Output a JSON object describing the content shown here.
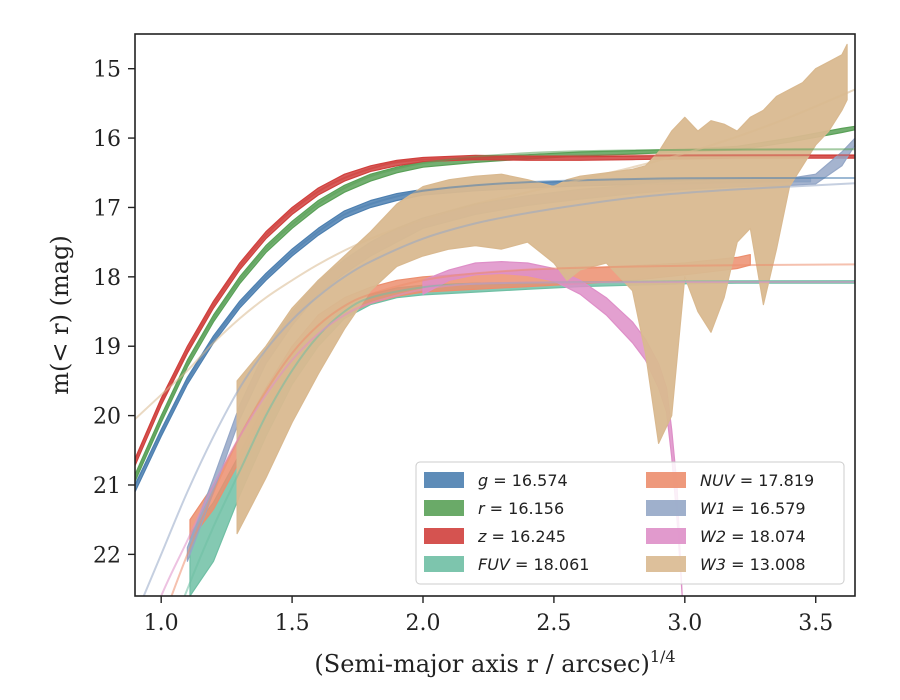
{
  "chart_data": {
    "type": "line",
    "xlabel": "(Semi-major axis r / arcsec)",
    "xlabel_exponent": "1/4",
    "ylabel": "m(< r) (mag)",
    "xlim": [
      0.9,
      3.65
    ],
    "ylim": [
      22.6,
      14.5
    ],
    "y_inverted": true,
    "x_ticks": [
      1.0,
      1.5,
      2.0,
      2.5,
      3.0,
      3.5
    ],
    "x_tick_labels": [
      "1.0",
      "1.5",
      "2.0",
      "2.5",
      "3.0",
      "3.5"
    ],
    "y_ticks": [
      15,
      16,
      17,
      18,
      19,
      20,
      21,
      22
    ],
    "y_tick_labels": [
      "15",
      "16",
      "17",
      "18",
      "19",
      "20",
      "21",
      "22"
    ],
    "grid": false,
    "legend_position": "lower-right",
    "legend_columns": 2,
    "series": [
      {
        "name": "g",
        "value": "16.574",
        "color": "#4c7fb0",
        "band_x": [
          0.9,
          1.0,
          1.1,
          1.2,
          1.3,
          1.4,
          1.5,
          1.6,
          1.7,
          1.8,
          1.9,
          2.0,
          2.2,
          2.4,
          2.6,
          2.8,
          3.0,
          3.2,
          3.4,
          3.48
        ],
        "band_upper": [
          21.0,
          20.2,
          19.45,
          18.85,
          18.35,
          17.95,
          17.6,
          17.3,
          17.05,
          16.9,
          16.8,
          16.74,
          16.68,
          16.64,
          16.62,
          16.6,
          16.6,
          16.59,
          16.58,
          16.58
        ],
        "band_lower": [
          21.1,
          20.3,
          19.55,
          18.95,
          18.45,
          18.05,
          17.7,
          17.4,
          17.15,
          17.0,
          16.9,
          16.82,
          16.76,
          16.72,
          16.69,
          16.67,
          16.66,
          16.64,
          16.63,
          16.63
        ],
        "model_x": [
          0.9,
          1.0,
          1.1,
          1.2,
          1.3,
          1.4,
          1.5,
          1.6,
          1.7,
          1.8,
          1.9,
          2.0,
          2.2,
          2.5,
          3.0,
          3.65
        ],
        "model_y": [
          21.0,
          20.25,
          19.5,
          18.9,
          18.4,
          18.0,
          17.65,
          17.35,
          17.1,
          16.95,
          16.84,
          16.76,
          16.68,
          16.62,
          16.58,
          16.575
        ]
      },
      {
        "name": "r",
        "value": "16.156",
        "color": "#5aa158",
        "band_x": [
          0.9,
          1.0,
          1.1,
          1.2,
          1.3,
          1.4,
          1.5,
          1.6,
          1.7,
          1.8,
          1.9,
          2.0,
          2.2,
          2.4,
          2.6,
          2.8,
          3.0,
          3.2,
          3.4,
          3.6,
          3.65
        ],
        "band_upper": [
          20.85,
          20.0,
          19.2,
          18.55,
          18.0,
          17.55,
          17.2,
          16.9,
          16.68,
          16.52,
          16.42,
          16.34,
          16.28,
          16.24,
          16.2,
          16.18,
          16.16,
          16.12,
          16.0,
          15.86,
          15.83
        ],
        "band_lower": [
          20.95,
          20.1,
          19.3,
          18.65,
          18.1,
          17.65,
          17.3,
          17.0,
          16.78,
          16.62,
          16.5,
          16.42,
          16.35,
          16.3,
          16.26,
          16.23,
          16.2,
          16.17,
          16.06,
          15.92,
          15.88
        ],
        "model_x": [
          0.9,
          1.0,
          1.1,
          1.2,
          1.3,
          1.4,
          1.5,
          1.6,
          1.7,
          1.8,
          1.9,
          2.0,
          2.2,
          2.5,
          3.0,
          3.65
        ],
        "model_y": [
          20.9,
          20.05,
          19.25,
          18.6,
          18.05,
          17.6,
          17.25,
          16.95,
          16.72,
          16.55,
          16.44,
          16.36,
          16.27,
          16.2,
          16.17,
          16.16
        ]
      },
      {
        "name": "z",
        "value": "16.245",
        "color": "#d0403d",
        "band_x": [
          0.9,
          1.0,
          1.1,
          1.2,
          1.3,
          1.4,
          1.5,
          1.6,
          1.7,
          1.8,
          1.9,
          2.0,
          2.2,
          2.4,
          2.6,
          2.8,
          3.0,
          3.2,
          3.4,
          3.65
        ],
        "band_upper": [
          20.62,
          19.75,
          19.0,
          18.35,
          17.8,
          17.35,
          17.0,
          16.72,
          16.52,
          16.4,
          16.32,
          16.28,
          16.25,
          16.26,
          16.27,
          16.26,
          16.25,
          16.25,
          16.25,
          16.25
        ],
        "band_lower": [
          20.72,
          19.85,
          19.1,
          18.45,
          17.9,
          17.45,
          17.1,
          16.82,
          16.62,
          16.48,
          16.4,
          16.34,
          16.31,
          16.32,
          16.32,
          16.31,
          16.3,
          16.29,
          16.29,
          16.29
        ],
        "model_x": [
          0.9,
          1.0,
          1.2,
          1.4,
          1.6,
          1.8,
          2.0,
          2.5,
          3.0,
          3.65
        ],
        "model_y": [
          20.65,
          19.8,
          18.4,
          17.4,
          16.77,
          16.44,
          16.31,
          16.26,
          16.25,
          16.245
        ]
      },
      {
        "name": "FUV",
        "value": "18.061",
        "color": "#6fbfa4",
        "band_x": [
          1.11,
          1.2,
          1.3,
          1.4,
          1.5,
          1.6,
          1.7,
          1.8,
          1.9,
          2.0,
          2.2,
          2.4,
          2.6,
          2.8,
          3.0,
          3.2,
          3.4,
          3.65
        ],
        "band_upper": [
          21.7,
          21.25,
          20.55,
          19.8,
          19.15,
          18.68,
          18.4,
          18.25,
          18.16,
          18.12,
          18.09,
          18.08,
          18.07,
          18.07,
          18.06,
          18.06,
          18.06,
          18.06
        ],
        "band_lower": [
          22.6,
          22.1,
          21.15,
          20.3,
          19.55,
          19.0,
          18.6,
          18.4,
          18.3,
          18.26,
          18.22,
          18.18,
          18.14,
          18.12,
          18.1,
          18.09,
          18.09,
          18.09
        ],
        "model_x": [
          0.9,
          1.0,
          1.1,
          1.2,
          1.3,
          1.4,
          1.5,
          1.6,
          1.7,
          1.8,
          2.0,
          2.2,
          2.5,
          3.0,
          3.65
        ],
        "model_y": [
          24.5,
          23.5,
          22.5,
          21.6,
          20.8,
          20.0,
          19.35,
          18.85,
          18.5,
          18.3,
          18.15,
          18.1,
          18.08,
          18.065,
          18.06
        ]
      },
      {
        "name": "NUV",
        "value": "17.819",
        "color": "#ec8e6e",
        "band_x": [
          1.11,
          1.2,
          1.3,
          1.4,
          1.5,
          1.6,
          1.7,
          1.8,
          1.9,
          2.0,
          2.2,
          2.4,
          2.6,
          2.8,
          3.0,
          3.2,
          3.25
        ],
        "band_upper": [
          21.5,
          21.0,
          20.3,
          19.6,
          19.0,
          18.55,
          18.3,
          18.15,
          18.05,
          18.0,
          17.95,
          17.9,
          17.88,
          17.84,
          17.8,
          17.72,
          17.68
        ],
        "band_lower": [
          21.8,
          21.35,
          20.65,
          19.95,
          19.35,
          18.85,
          18.55,
          18.38,
          18.28,
          18.22,
          18.18,
          18.14,
          18.1,
          18.05,
          17.97,
          17.88,
          17.83
        ],
        "model_x": [
          0.9,
          1.0,
          1.1,
          1.2,
          1.3,
          1.4,
          1.5,
          1.6,
          1.7,
          1.8,
          2.0,
          2.2,
          2.5,
          3.0,
          3.65
        ],
        "model_y": [
          24.0,
          23.0,
          22.0,
          21.1,
          20.3,
          19.65,
          19.1,
          18.7,
          18.42,
          18.25,
          18.05,
          17.95,
          17.88,
          17.84,
          17.82
        ]
      },
      {
        "name": "W1",
        "value": "16.579",
        "color": "#95a7c7",
        "band_x": [
          1.1,
          1.2,
          1.3,
          1.4,
          1.5,
          1.6,
          1.7,
          1.8,
          1.9,
          2.0,
          2.2,
          2.4,
          2.6,
          2.8,
          3.0,
          3.2,
          3.4,
          3.5,
          3.6,
          3.65
        ],
        "band_upper": [
          21.9,
          20.9,
          19.85,
          19.05,
          18.5,
          18.05,
          17.75,
          17.5,
          17.3,
          17.15,
          16.95,
          16.83,
          16.74,
          16.68,
          16.63,
          16.6,
          16.58,
          16.52,
          16.2,
          16.0
        ],
        "band_lower": [
          22.1,
          21.1,
          20.05,
          19.25,
          18.7,
          18.25,
          17.95,
          17.7,
          17.5,
          17.3,
          17.1,
          16.97,
          16.88,
          16.8,
          16.74,
          16.7,
          16.68,
          16.66,
          16.4,
          16.1
        ],
        "model_x": [
          0.9,
          1.0,
          1.1,
          1.2,
          1.3,
          1.4,
          1.5,
          1.6,
          1.7,
          1.8,
          2.0,
          2.2,
          2.4,
          2.6,
          2.8,
          3.0,
          3.2,
          3.4,
          3.65
        ],
        "model_y": [
          22.9,
          22.0,
          21.1,
          20.3,
          19.6,
          19.05,
          18.62,
          18.28,
          18.0,
          17.78,
          17.45,
          17.23,
          17.08,
          16.96,
          16.86,
          16.79,
          16.74,
          16.7,
          16.65
        ]
      },
      {
        "name": "W2",
        "value": "18.074",
        "color": "#de8fc8",
        "band_x": [
          2.0,
          2.1,
          2.2,
          2.3,
          2.4,
          2.5,
          2.6,
          2.7,
          2.8,
          2.85,
          2.9,
          2.93,
          2.95,
          2.97,
          2.99
        ],
        "band_upper": [
          18.05,
          17.9,
          17.8,
          17.78,
          17.8,
          17.88,
          18.05,
          18.3,
          18.65,
          18.9,
          19.25,
          19.6,
          20.2,
          21.0,
          22.6
        ],
        "band_lower": [
          18.25,
          18.05,
          17.97,
          17.95,
          17.98,
          18.06,
          18.25,
          18.55,
          18.95,
          19.2,
          19.6,
          19.95,
          20.6,
          21.5,
          22.6
        ],
        "model_x": [
          0.9,
          1.0,
          1.1,
          1.2,
          1.3,
          1.4,
          1.5,
          1.6,
          1.7,
          1.8,
          2.0,
          2.2,
          2.5,
          3.0,
          3.65
        ],
        "model_y": [
          23.6,
          22.6,
          21.8,
          21.0,
          20.3,
          19.7,
          19.2,
          18.82,
          18.55,
          18.38,
          18.18,
          18.1,
          18.08,
          18.075,
          18.074
        ]
      },
      {
        "name": "W3",
        "value": "13.008",
        "color": "#d9b990",
        "band_x": [
          1.29,
          1.4,
          1.5,
          1.6,
          1.7,
          1.8,
          1.9,
          2.0,
          2.1,
          2.2,
          2.3,
          2.4,
          2.5,
          2.55,
          2.6,
          2.7,
          2.8,
          2.85,
          2.9,
          2.95,
          3.0,
          3.05,
          3.1,
          3.15,
          3.2,
          3.25,
          3.3,
          3.35,
          3.4,
          3.45,
          3.5,
          3.55,
          3.6,
          3.62
        ],
        "band_upper": [
          19.5,
          19.0,
          18.45,
          18.05,
          17.7,
          17.35,
          16.95,
          16.7,
          16.6,
          16.55,
          16.52,
          16.6,
          16.7,
          16.6,
          16.55,
          16.5,
          16.45,
          16.4,
          16.2,
          15.9,
          15.7,
          15.9,
          15.75,
          15.8,
          15.9,
          15.7,
          15.6,
          15.4,
          15.3,
          15.2,
          15.0,
          14.9,
          14.8,
          14.65
        ],
        "band_lower": [
          21.7,
          20.9,
          20.1,
          19.4,
          18.75,
          18.2,
          17.85,
          17.7,
          17.6,
          17.55,
          17.6,
          17.5,
          17.8,
          18.05,
          17.9,
          17.8,
          18.2,
          19.1,
          20.4,
          20.0,
          18.0,
          18.5,
          18.8,
          18.3,
          17.5,
          17.3,
          18.4,
          17.6,
          16.7,
          16.4,
          16.1,
          15.9,
          15.6,
          15.45
        ],
        "model_x": [
          0.9,
          1.0,
          1.1,
          1.2,
          1.3,
          1.4,
          1.5,
          1.6,
          1.7,
          1.8,
          2.0,
          2.2,
          2.4,
          2.6,
          2.8,
          3.0,
          3.2,
          3.4,
          3.65
        ],
        "model_y": [
          20.05,
          19.7,
          19.35,
          18.95,
          18.6,
          18.3,
          18.05,
          17.82,
          17.62,
          17.45,
          17.17,
          16.95,
          16.78,
          16.6,
          16.42,
          16.22,
          15.98,
          15.7,
          15.3
        ]
      }
    ],
    "colors": {
      "axis": "#222222",
      "background": "#ffffff"
    }
  }
}
